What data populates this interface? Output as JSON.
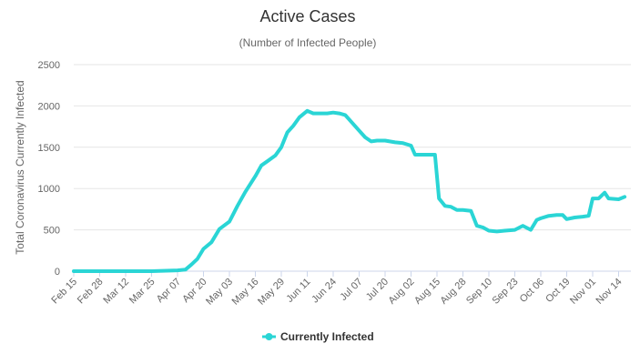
{
  "chart_data": {
    "type": "line",
    "title": "Active Cases",
    "subtitle": "(Number of Infected People)",
    "xlabel": "",
    "ylabel": "Total Coronavirus Currently Infected",
    "ylim": [
      0,
      2500
    ],
    "yticks": [
      0,
      500,
      1000,
      1500,
      2000,
      2500
    ],
    "grid": true,
    "legend_position": "bottom-center",
    "x_tick_labels": [
      "Feb 15",
      "Feb 28",
      "Mar 12",
      "Mar 25",
      "Apr 07",
      "Apr 20",
      "May 03",
      "May 16",
      "May 29",
      "Jun 11",
      "Jun 24",
      "Jul 07",
      "Jul 20",
      "Aug 02",
      "Aug 15",
      "Aug 28",
      "Sep 10",
      "Sep 23",
      "Oct 06",
      "Oct 19",
      "Nov 01",
      "Nov 14"
    ],
    "colors": {
      "series": "#2ad5d5"
    },
    "series": [
      {
        "name": "Currently Infected",
        "x": [
          "Feb 15",
          "Feb 28",
          "Mar 12",
          "Mar 25",
          "Apr 07",
          "Apr 11",
          "Apr 14",
          "Apr 17",
          "Apr 20",
          "Apr 24",
          "Apr 28",
          "May 03",
          "May 07",
          "May 11",
          "May 16",
          "May 19",
          "May 22",
          "May 26",
          "May 29",
          "Jun 01",
          "Jun 04",
          "Jun 07",
          "Jun 11",
          "Jun 14",
          "Jun 17",
          "Jun 21",
          "Jun 24",
          "Jun 27",
          "Jun 30",
          "Jul 03",
          "Jul 07",
          "Jul 10",
          "Jul 13",
          "Jul 16",
          "Jul 20",
          "Jul 25",
          "Jul 29",
          "Aug 02",
          "Aug 04",
          "Aug 07",
          "Aug 10",
          "Aug 14",
          "Aug 16",
          "Aug 19",
          "Aug 22",
          "Aug 25",
          "Aug 28",
          "Sep 01",
          "Sep 04",
          "Sep 07",
          "Sep 10",
          "Sep 14",
          "Sep 18",
          "Sep 23",
          "Sep 27",
          "Oct 01",
          "Oct 04",
          "Oct 06",
          "Oct 10",
          "Oct 14",
          "Oct 17",
          "Oct 19",
          "Oct 23",
          "Oct 27",
          "Oct 30",
          "Nov 01",
          "Nov 04",
          "Nov 07",
          "Nov 09",
          "Nov 14",
          "Nov 17"
        ],
        "values": [
          0,
          0,
          0,
          0,
          10,
          20,
          80,
          150,
          270,
          350,
          510,
          600,
          790,
          960,
          1150,
          1280,
          1330,
          1400,
          1500,
          1680,
          1760,
          1860,
          1940,
          1910,
          1910,
          1910,
          1920,
          1910,
          1890,
          1810,
          1700,
          1620,
          1570,
          1580,
          1580,
          1560,
          1550,
          1520,
          1410,
          1410,
          1410,
          1410,
          880,
          790,
          780,
          740,
          740,
          730,
          550,
          530,
          490,
          480,
          490,
          500,
          550,
          500,
          620,
          640,
          670,
          680,
          680,
          630,
          650,
          660,
          670,
          880,
          880,
          950,
          880,
          870,
          900
        ]
      }
    ]
  }
}
